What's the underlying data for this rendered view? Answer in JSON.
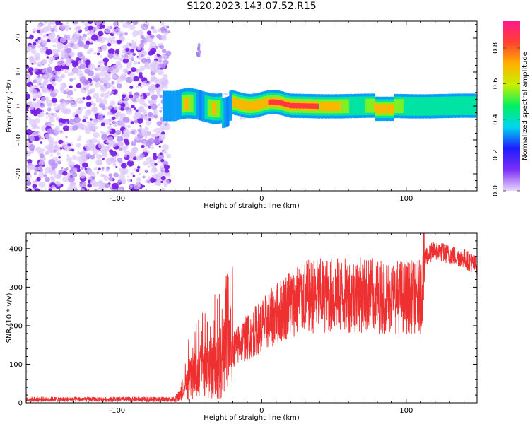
{
  "title": "S120.2023.143.07.52.R15",
  "chart_data": [
    {
      "type": "heatmap",
      "xlabel": "Height of straight line (km)",
      "ylabel": "Frequency (Hz)",
      "xlim": [
        -163,
        149
      ],
      "ylim": [
        -25,
        25
      ],
      "xticks": [
        -100,
        0,
        100
      ],
      "yticks": [
        -20,
        -10,
        0,
        10,
        20
      ],
      "colorbar": {
        "label": "Normalized spectral amplitude",
        "range": [
          0,
          0.95
        ],
        "ticks": [
          0.0,
          0.2,
          0.4,
          0.6,
          0.8
        ],
        "colors": [
          "#e9d6fb",
          "#7b2ff7",
          "#1d1bff",
          "#00d6f0",
          "#00f060",
          "#c8f000",
          "#ffb000",
          "#ff4030",
          "#ff1a8c"
        ]
      },
      "features": [
        {
          "name": "noise",
          "x_range": [
            -163,
            -66
          ],
          "freq_range": [
            -25,
            25
          ],
          "amplitude": 0.1
        },
        {
          "name": "ridge",
          "x_range": [
            -68,
            149
          ],
          "freq_center": 0,
          "amplitude_peak": 0.9
        }
      ]
    },
    {
      "type": "line",
      "xlabel": "Height of straight line (km)",
      "ylabel": "SNR (10 * v/v)",
      "xlim": [
        -163,
        149
      ],
      "ylim": [
        0,
        440
      ],
      "xticks": [
        -100,
        0,
        100
      ],
      "yticks": [
        0,
        100,
        200,
        300,
        400
      ],
      "color": "#ee3030",
      "envelope": [
        {
          "x": -163,
          "y": 8
        },
        {
          "x": -60,
          "y": 8
        },
        {
          "x": -55,
          "y": 20
        },
        {
          "x": -50,
          "y": 60
        },
        {
          "x": -40,
          "y": 80
        },
        {
          "x": -30,
          "y": 100
        },
        {
          "x": -20,
          "y": 140
        },
        {
          "x": -10,
          "y": 170
        },
        {
          "x": 0,
          "y": 200
        },
        {
          "x": 10,
          "y": 230
        },
        {
          "x": 20,
          "y": 260
        },
        {
          "x": 30,
          "y": 275
        },
        {
          "x": 50,
          "y": 280
        },
        {
          "x": 70,
          "y": 280
        },
        {
          "x": 90,
          "y": 275
        },
        {
          "x": 110,
          "y": 275
        },
        {
          "x": 113,
          "y": 380
        },
        {
          "x": 120,
          "y": 395
        },
        {
          "x": 140,
          "y": 375
        },
        {
          "x": 149,
          "y": 355
        }
      ]
    }
  ]
}
